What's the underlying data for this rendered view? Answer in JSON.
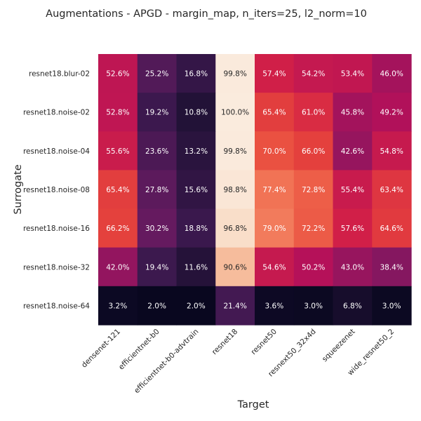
{
  "chart_data": {
    "type": "heatmap",
    "title": "Augmentations - APGD - margin_map, n_iters=25, l2_norm=10",
    "xlabel": "Target",
    "ylabel": "Surrogate",
    "x_categories": [
      "densenet-121",
      "efficientnet-b0",
      "efficientnet-b0-advtrain",
      "resnet18",
      "resnet50",
      "resnext50_32x4d",
      "squeezenet",
      "wide_resnet50_2"
    ],
    "y_categories": [
      "resnet18.blur-02",
      "resnet18.noise-02",
      "resnet18.noise-04",
      "resnet18.noise-08",
      "resnet18.noise-16",
      "resnet18.noise-32",
      "resnet18.noise-64"
    ],
    "values": [
      [
        52.6,
        25.2,
        16.8,
        99.8,
        57.4,
        54.2,
        53.4,
        46.0
      ],
      [
        52.8,
        19.2,
        10.8,
        100.0,
        65.4,
        61.0,
        45.8,
        49.2
      ],
      [
        55.6,
        23.6,
        13.2,
        99.8,
        70.0,
        66.0,
        42.6,
        54.8
      ],
      [
        65.4,
        27.8,
        15.6,
        98.8,
        77.4,
        72.8,
        55.4,
        63.4
      ],
      [
        66.2,
        30.2,
        18.8,
        96.8,
        79.0,
        72.2,
        57.6,
        64.6
      ],
      [
        42.0,
        19.4,
        11.6,
        90.6,
        54.6,
        50.2,
        43.0,
        38.4
      ],
      [
        3.2,
        2.0,
        2.0,
        21.4,
        3.6,
        3.0,
        6.8,
        3.0
      ]
    ],
    "value_format": "percent_1dp",
    "colormap": "rocket",
    "colorbar": false,
    "grid": false,
    "vmin": 0,
    "vmax": 100
  }
}
